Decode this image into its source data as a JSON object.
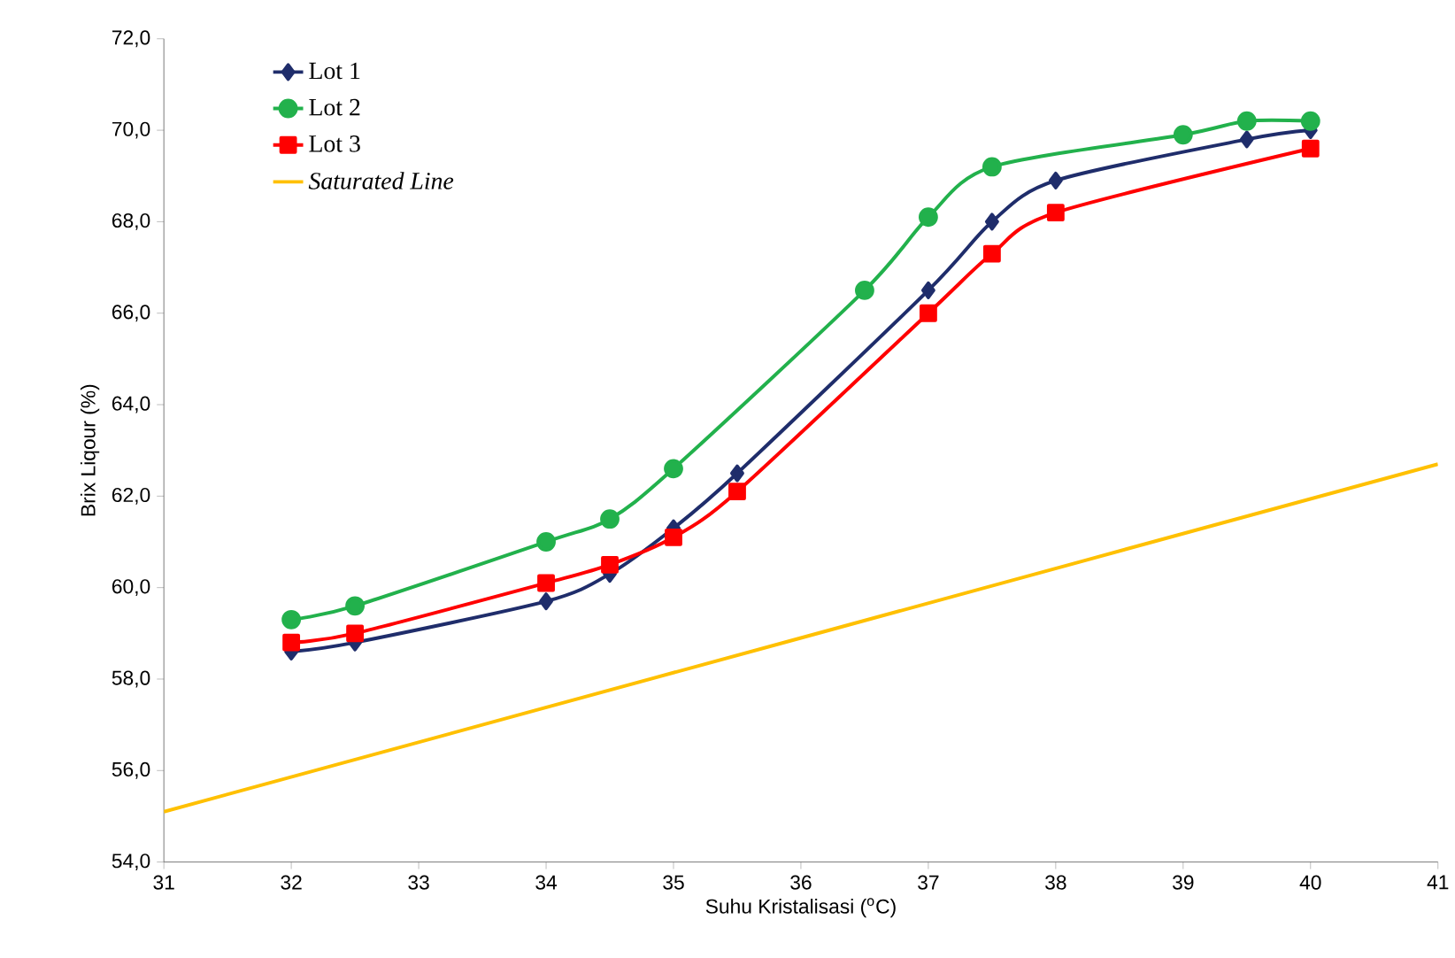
{
  "chart_data": {
    "type": "line",
    "xlabel": "Suhu Kristalisasi ($^{o}$C)",
    "ylabel": "Brix Liqour (%)",
    "xlim": [
      31,
      41
    ],
    "xticks": [
      31,
      32,
      33,
      34,
      35,
      36,
      37,
      38,
      39,
      40,
      41
    ],
    "ylim": [
      54,
      72
    ],
    "yticks": [
      {
        "value": 54,
        "label": "54,0"
      },
      {
        "value": 56,
        "label": "56,0"
      },
      {
        "value": 58,
        "label": "58,0"
      },
      {
        "value": 60,
        "label": "60,0"
      },
      {
        "value": 62,
        "label": "62,0"
      },
      {
        "value": 64,
        "label": "64,0"
      },
      {
        "value": 66,
        "label": "66,0"
      },
      {
        "value": 68,
        "label": "68,0"
      },
      {
        "value": 70,
        "label": "70,0"
      },
      {
        "value": 72,
        "label": "72,0"
      }
    ],
    "grid": false,
    "legend": "top left",
    "series": [
      {
        "name": "Lot 1",
        "color": "#1f2d6b",
        "marker": "diamond",
        "x": [
          32,
          32.5,
          34,
          34.5,
          35,
          35.5,
          37,
          37.5,
          38,
          39.5,
          40
        ],
        "values": [
          58.6,
          58.8,
          59.7,
          60.3,
          61.3,
          62.5,
          66.5,
          68.0,
          68.9,
          69.8,
          70.0
        ]
      },
      {
        "name": "Lot 2",
        "color": "#22b14c",
        "marker": "circle",
        "x": [
          32,
          32.5,
          34,
          34.5,
          35,
          36.5,
          37,
          37.5,
          39,
          39.5,
          40
        ],
        "values": [
          59.3,
          59.6,
          61.0,
          61.5,
          62.6,
          66.5,
          68.1,
          69.2,
          69.9,
          70.2,
          70.2
        ]
      },
      {
        "name": "Lot 3",
        "color": "#ff0000",
        "marker": "square",
        "x": [
          32,
          32.5,
          34,
          34.5,
          35,
          35.5,
          37,
          37.5,
          38,
          40
        ],
        "values": [
          58.8,
          59.0,
          60.1,
          60.5,
          61.1,
          62.1,
          66.0,
          67.3,
          68.2,
          69.6
        ]
      },
      {
        "name": "*Saturated Line*",
        "color": "#ffc000",
        "marker": "none",
        "x": [
          31,
          36,
          41
        ],
        "values": [
          55.1,
          58.9,
          62.7
        ]
      }
    ]
  }
}
